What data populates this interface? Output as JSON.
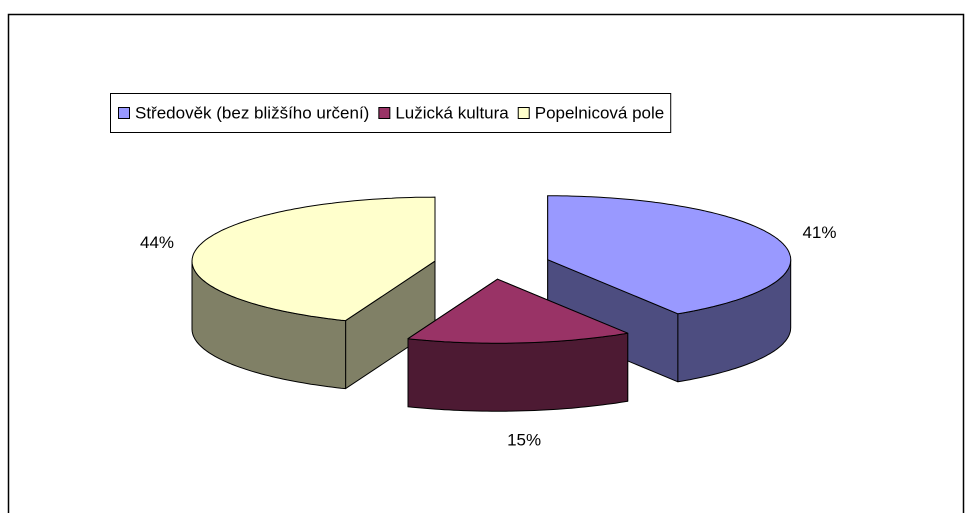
{
  "chart_data": {
    "type": "pie3d",
    "categories": [
      "Středověk (bez bližšího určení)",
      "Lužická kultura",
      "Popelnicová pole"
    ],
    "values": [
      41,
      15,
      44
    ],
    "value_labels": [
      "41%",
      "15%",
      "44%"
    ],
    "colors": [
      "#9999ff",
      "#993366",
      "#ffffcc"
    ],
    "legend": "top"
  }
}
